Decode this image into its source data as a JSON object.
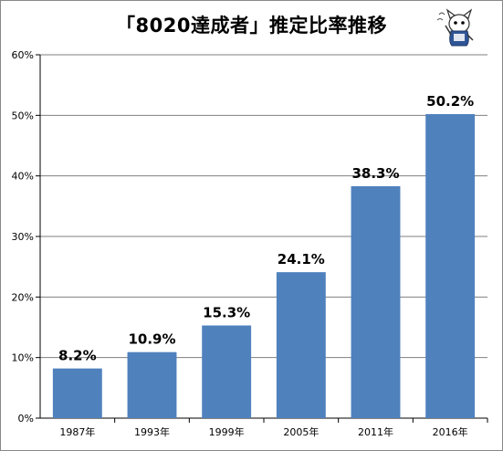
{
  "title": "「8020達成者」推定比率推移",
  "chart_data": {
    "type": "bar",
    "categories": [
      "1987年",
      "1993年",
      "1999年",
      "2005年",
      "2011年",
      "2016年"
    ],
    "values": [
      8.2,
      10.9,
      15.3,
      24.1,
      38.3,
      50.2
    ],
    "data_labels": [
      "8.2%",
      "10.9%",
      "15.3%",
      "24.1%",
      "38.3%",
      "50.2%"
    ],
    "ylim": [
      0,
      60
    ],
    "yticks": [
      0,
      10,
      20,
      30,
      40,
      50,
      60
    ],
    "ytick_labels": [
      "0%",
      "10%",
      "20%",
      "30%",
      "40%",
      "50%",
      "60%"
    ],
    "grid": true,
    "bar_color": "#4f81bd",
    "grid_color": "#7f7f7f"
  }
}
